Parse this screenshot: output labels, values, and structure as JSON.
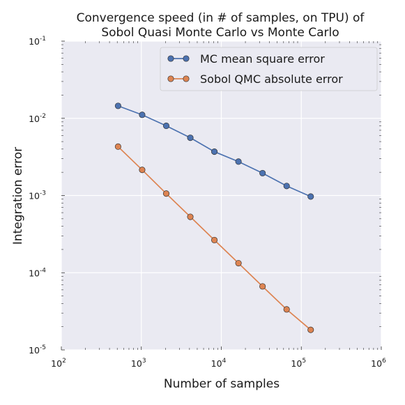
{
  "chart_data": {
    "type": "line",
    "title_lines": [
      "Convergence speed (in # of samples, on TPU) of",
      "Sobol Quasi Monte Carlo vs Monte Carlo"
    ],
    "xlabel": "Number of samples",
    "ylabel": "Integration error",
    "xscale": "log",
    "yscale": "log",
    "xlim": [
      100,
      1000000
    ],
    "ylim": [
      1e-05,
      0.1
    ],
    "x_ticks": [
      {
        "value": 100,
        "base": "10",
        "exp": "2"
      },
      {
        "value": 1000,
        "base": "10",
        "exp": "3"
      },
      {
        "value": 10000,
        "base": "10",
        "exp": "4"
      },
      {
        "value": 100000,
        "base": "10",
        "exp": "5"
      },
      {
        "value": 1000000,
        "base": "10",
        "exp": "6"
      }
    ],
    "y_ticks": [
      {
        "value": 0.1,
        "base": "10",
        "exp": "-1"
      },
      {
        "value": 0.01,
        "base": "10",
        "exp": "-2"
      },
      {
        "value": 0.001,
        "base": "10",
        "exp": "-3"
      },
      {
        "value": 0.0001,
        "base": "10",
        "exp": "-4"
      },
      {
        "value": 1e-05,
        "base": "10",
        "exp": "-5"
      }
    ],
    "grid": true,
    "legend_position": "top-right",
    "background_color": "#eaeaf2",
    "x": [
      512,
      1024,
      2048,
      4096,
      8192,
      16384,
      32768,
      65536,
      131072
    ],
    "series": [
      {
        "name": "MC mean square error",
        "color": "#4c72b0",
        "values": [
          0.0145,
          0.0111,
          0.008,
          0.0056,
          0.0037,
          0.00275,
          0.00195,
          0.00133,
          0.00097
        ]
      },
      {
        "name": "Sobol QMC absolute error",
        "color": "#dd8452",
        "values": [
          0.0043,
          0.00215,
          0.00106,
          0.00053,
          0.000265,
          0.000133,
          6.65e-05,
          3.35e-05,
          1.82e-05
        ]
      }
    ]
  }
}
